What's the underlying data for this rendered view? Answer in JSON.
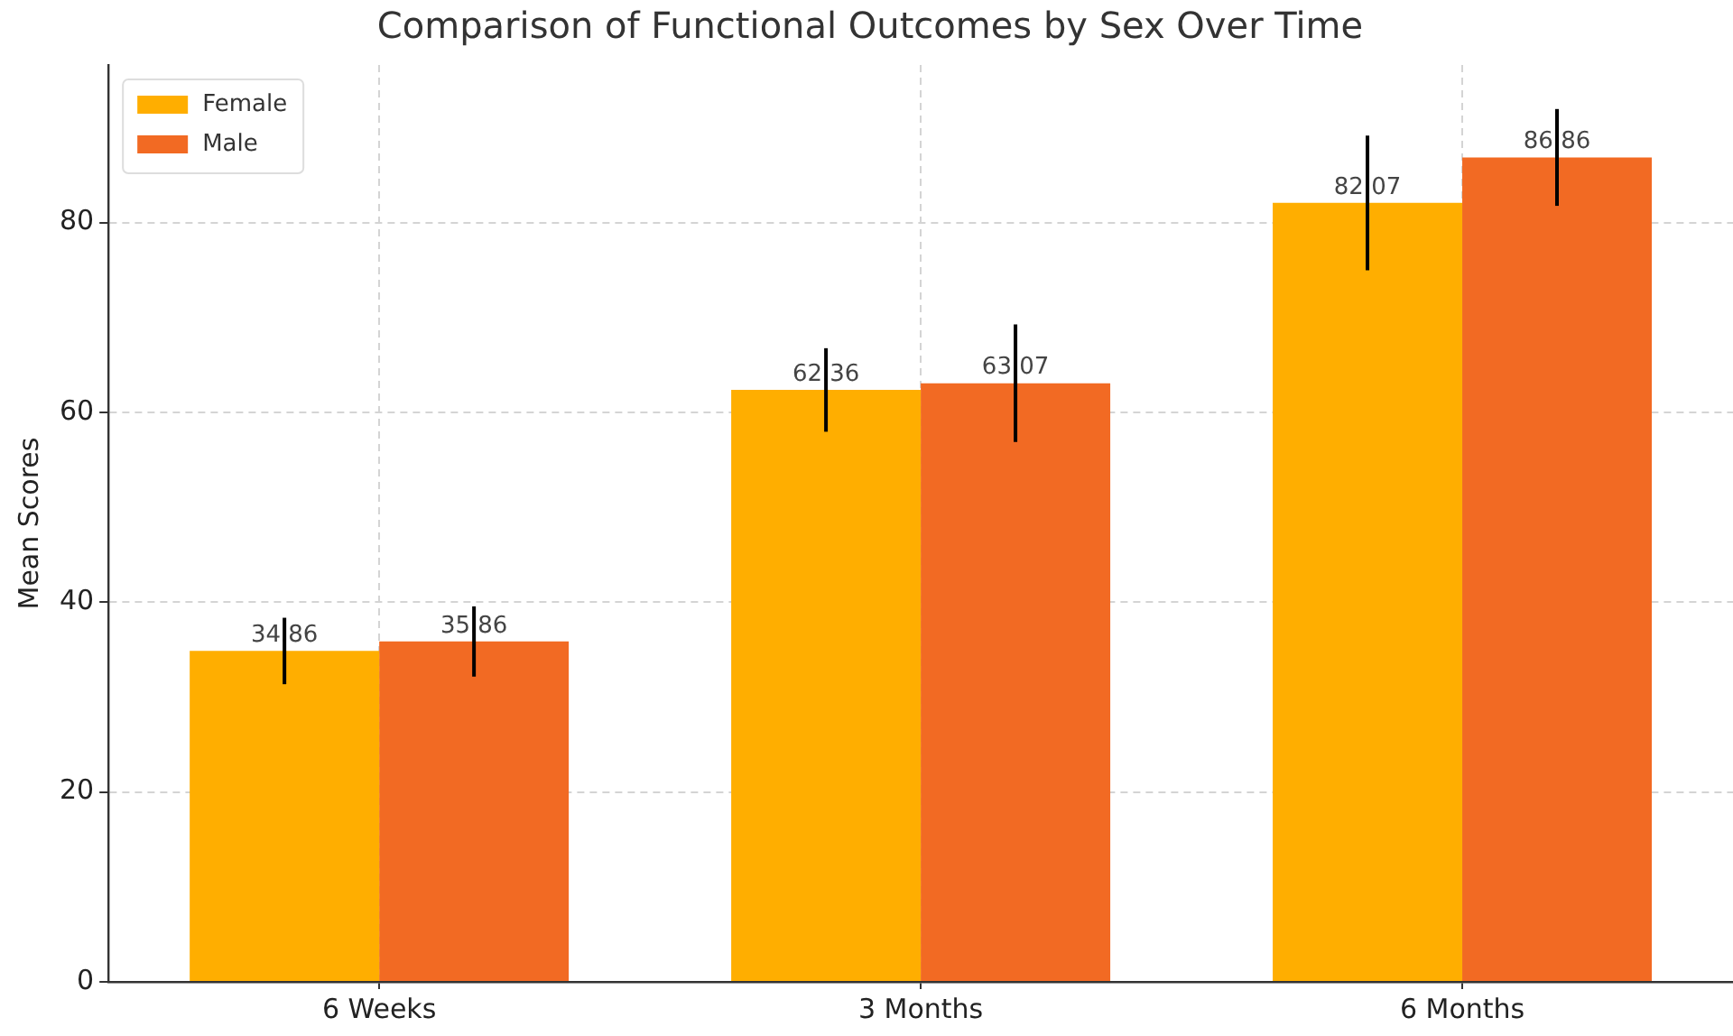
{
  "chart_data": {
    "type": "bar",
    "title": "Comparison of Functional Outcomes by Sex Over Time",
    "ylabel": "Mean Scores",
    "categories": [
      "6 Weeks",
      "3 Months",
      "6 Months"
    ],
    "series": [
      {
        "name": "Female",
        "color": "#ffae00",
        "values": [
          34.86,
          62.36,
          82.07
        ],
        "errors": [
          3.5,
          4.4,
          7.1
        ]
      },
      {
        "name": "Male",
        "color": "#f26a23",
        "values": [
          35.86,
          63.07,
          86.86
        ],
        "errors": [
          3.7,
          6.2,
          5.1
        ]
      }
    ],
    "ylim": [
      0,
      96.6
    ],
    "yticks": [
      0,
      20,
      40,
      60,
      80
    ],
    "grid": true,
    "legend": "top left",
    "data_labels": true
  }
}
